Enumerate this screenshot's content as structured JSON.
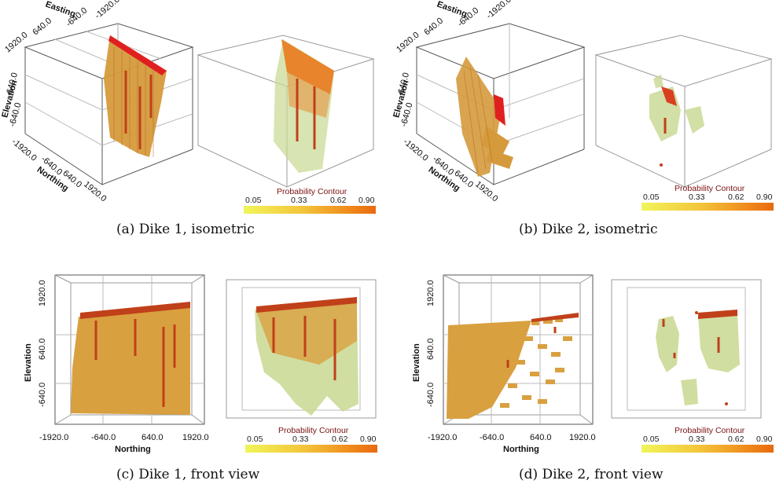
{
  "panels": {
    "a": {
      "caption": "(a) Dike 1, isometric",
      "axes": {
        "easting_title": "Easting",
        "easting_ticks": [
          "1920.0",
          "640.0",
          "-640.0",
          "-1920.0"
        ],
        "elevation_title": "Elevation",
        "elevation_ticks": [
          "640.0",
          "-640.0",
          "-1920.0"
        ],
        "northing_title": "Northing",
        "northing_ticks": [
          "-640.0",
          "640.0",
          "1920.0"
        ]
      },
      "colorbar": {
        "title": "Probability Contour",
        "ticks": [
          "0.05",
          "0.33",
          "0.62",
          "0.90"
        ]
      }
    },
    "b": {
      "caption": "(b) Dike 2, isometric",
      "axes": {
        "easting_title": "Easting",
        "easting_ticks": [
          "1920.0",
          "640.0",
          "-640.0",
          "-1920.0"
        ],
        "elevation_title": "Elevation",
        "elevation_ticks": [
          "640.0",
          "-640.0",
          "-1920.0"
        ],
        "northing_title": "Northing",
        "northing_ticks": [
          "-640.0",
          "640.0",
          "1920.0"
        ]
      },
      "colorbar": {
        "title": "Probability Contour",
        "ticks": [
          "0.05",
          "0.33",
          "0.62",
          "0.90"
        ]
      }
    },
    "c": {
      "caption": "(c) Dike 1, front view",
      "axes": {
        "elevation_title": "Elevation",
        "elevation_ticks": [
          "1920.0",
          "640.0",
          "-640.0"
        ],
        "northing_title": "Northing",
        "northing_ticks": [
          "-1920.0",
          "-640.0",
          "640.0",
          "1920.0"
        ]
      },
      "colorbar": {
        "title": "Probability Contour",
        "ticks": [
          "0.05",
          "0.33",
          "0.62",
          "0.90"
        ]
      }
    },
    "d": {
      "caption": "(d) Dike 2, front view",
      "axes": {
        "elevation_title": "Elevation",
        "elevation_ticks": [
          "1920.0",
          "640.0",
          "-640.0"
        ],
        "northing_title": "Northing",
        "northing_ticks": [
          "-1920.0",
          "-640.0",
          "640.0",
          "1920.0"
        ]
      },
      "colorbar": {
        "title": "Probability Contour",
        "ticks": [
          "0.05",
          "0.33",
          "0.62",
          "0.90"
        ]
      }
    }
  },
  "colors": {
    "voxel_body": "#d9a040",
    "voxel_top": "#e02020",
    "contour_green": "#c8d890",
    "borehole": "#c0401a"
  }
}
